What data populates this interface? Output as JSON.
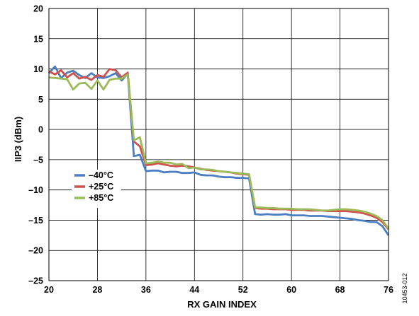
{
  "chart_data": {
    "type": "line",
    "title": "",
    "xlabel": "RX GAIN INDEX",
    "ylabel": "IIP3 (dBm)",
    "xlim": [
      20,
      76
    ],
    "ylim": [
      -25,
      20
    ],
    "xticks": [
      20,
      28,
      36,
      44,
      52,
      60,
      68,
      76
    ],
    "yticks": [
      20,
      15,
      10,
      5,
      0,
      -5,
      -10,
      -15,
      -20,
      -25
    ],
    "xtick_labels": [
      "20",
      "28",
      "36",
      "44",
      "52",
      "60",
      "68",
      "76"
    ],
    "ytick_labels": [
      "20",
      "15",
      "10",
      "5",
      "0",
      "–5",
      "–10",
      "–15",
      "–20",
      "–25"
    ],
    "vertical_grid": [
      28,
      36,
      44,
      52,
      60,
      68
    ],
    "horizontal_grid": [
      15,
      10,
      5,
      0,
      -5,
      -10,
      -15,
      -20
    ],
    "grid": true,
    "legend_position": "center-left",
    "figure_id": "10453-012",
    "series": [
      {
        "name": "–40°C",
        "color": "#4a7ec2",
        "x": [
          20,
          21,
          22,
          23,
          24,
          25,
          26,
          27,
          28,
          29,
          30,
          31,
          32,
          33,
          34,
          35,
          36,
          37,
          38,
          39,
          40,
          41,
          42,
          43,
          44,
          45,
          46,
          47,
          48,
          49,
          50,
          51,
          52,
          53,
          54,
          55,
          56,
          57,
          58,
          59,
          60,
          61,
          62,
          63,
          64,
          65,
          66,
          67,
          68,
          69,
          70,
          71,
          72,
          73,
          74,
          75,
          76
        ],
        "y": [
          9.3,
          10.4,
          8.5,
          9.4,
          9.7,
          9.0,
          8.5,
          9.3,
          8.6,
          8.5,
          8.8,
          9.3,
          8.1,
          9.2,
          -4.4,
          -4.2,
          -6.9,
          -6.8,
          -6.8,
          -7.1,
          -7.0,
          -7.0,
          -7.2,
          -7.2,
          -7.1,
          -7.5,
          -7.6,
          -7.6,
          -7.8,
          -7.9,
          -7.9,
          -8.0,
          -8.0,
          -8.1,
          -14.0,
          -14.1,
          -14.0,
          -14.1,
          -14.1,
          -14.0,
          -14.2,
          -14.2,
          -14.2,
          -14.3,
          -14.3,
          -14.3,
          -14.4,
          -14.5,
          -14.6,
          -14.7,
          -14.8,
          -15.0,
          -15.1,
          -15.3,
          -15.3,
          -16.0,
          -17.5
        ]
      },
      {
        "name": "+25°C",
        "color": "#d0504c",
        "x": [
          20,
          21,
          22,
          23,
          24,
          25,
          26,
          27,
          28,
          29,
          30,
          31,
          32,
          33,
          34,
          35,
          36,
          37,
          38,
          39,
          40,
          41,
          42,
          43,
          44,
          45,
          46,
          47,
          48,
          49,
          50,
          51,
          52,
          53,
          54,
          55,
          56,
          57,
          58,
          59,
          60,
          61,
          62,
          63,
          64,
          65,
          66,
          67,
          68,
          69,
          70,
          71,
          72,
          73,
          74,
          75,
          76
        ],
        "y": [
          9.6,
          9.1,
          9.8,
          8.6,
          9.3,
          8.4,
          8.7,
          8.2,
          9.0,
          8.7,
          10.0,
          9.8,
          8.6,
          9.4,
          -2.0,
          -2.8,
          -5.9,
          -5.8,
          -5.6,
          -5.8,
          -6.0,
          -6.1,
          -6.0,
          -6.1,
          -6.3,
          -6.5,
          -6.7,
          -6.8,
          -6.9,
          -7.0,
          -7.1,
          -7.3,
          -7.4,
          -7.5,
          -13.0,
          -13.1,
          -13.1,
          -13.2,
          -13.2,
          -13.2,
          -13.3,
          -13.3,
          -13.3,
          -13.4,
          -13.4,
          -13.4,
          -13.5,
          -13.5,
          -13.5,
          -13.5,
          -13.6,
          -13.7,
          -13.9,
          -14.2,
          -14.6,
          -15.3,
          -16.5
        ]
      },
      {
        "name": "+85°C",
        "color": "#9bbb59",
        "x": [
          20,
          21,
          22,
          23,
          24,
          25,
          26,
          27,
          28,
          29,
          30,
          31,
          32,
          33,
          34,
          35,
          36,
          37,
          38,
          39,
          40,
          41,
          42,
          43,
          44,
          45,
          46,
          47,
          48,
          49,
          50,
          51,
          52,
          53,
          54,
          55,
          56,
          57,
          58,
          59,
          60,
          61,
          62,
          63,
          64,
          65,
          66,
          67,
          68,
          69,
          70,
          71,
          72,
          73,
          74,
          75,
          76
        ],
        "y": [
          8.6,
          8.5,
          8.4,
          8.3,
          6.6,
          7.6,
          7.7,
          6.7,
          8.1,
          6.6,
          8.2,
          8.4,
          8.4,
          9.1,
          -1.8,
          -1.3,
          -5.6,
          -5.5,
          -5.3,
          -5.5,
          -5.5,
          -5.8,
          -5.7,
          -6.4,
          -6.3,
          -6.6,
          -6.6,
          -6.7,
          -6.9,
          -7.0,
          -7.1,
          -7.2,
          -7.3,
          -7.4,
          -12.9,
          -12.9,
          -13.0,
          -13.0,
          -13.1,
          -13.1,
          -13.1,
          -13.2,
          -13.2,
          -13.2,
          -13.3,
          -13.4,
          -13.4,
          -13.3,
          -13.2,
          -13.2,
          -13.3,
          -13.4,
          -13.6,
          -13.9,
          -14.3,
          -15.0,
          -16.4
        ]
      }
    ]
  }
}
